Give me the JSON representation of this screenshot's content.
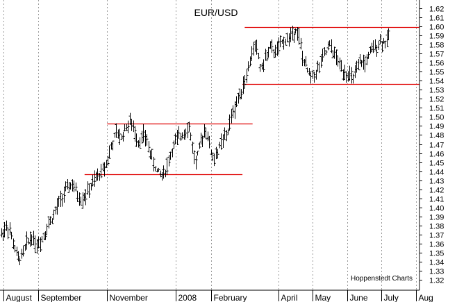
{
  "chart_data": {
    "type": "ohlc",
    "title": "EUR/USD",
    "credit": "Hoppenstedt Charts",
    "xlabel": "",
    "ylabel": "",
    "ylim": [
      1.31,
      1.625
    ],
    "y_ticks": [
      "1.62",
      "1.61",
      "1.60",
      "1.59",
      "1.58",
      "1.57",
      "1.56",
      "1.55",
      "1.54",
      "1.53",
      "1.52",
      "1.51",
      "1.50",
      "1.49",
      "1.48",
      "1.47",
      "1.46",
      "1.45",
      "1.44",
      "1.43",
      "1.42",
      "1.41",
      "1.40",
      "1.39",
      "1.38",
      "1.37",
      "1.36",
      "1.35",
      "1.34",
      "1.33",
      "1.32"
    ],
    "x_ticks": [
      {
        "label": "August",
        "day": 0
      },
      {
        "label": "September",
        "day": 31
      },
      {
        "label": "November",
        "day": 92
      },
      {
        "label": "2008",
        "day": 153
      },
      {
        "label": "February",
        "day": 184
      },
      {
        "label": "April",
        "day": 244
      },
      {
        "label": "May",
        "day": 274
      },
      {
        "label": "June",
        "day": 305
      },
      {
        "label": "July",
        "day": 335
      },
      {
        "label": "Aug",
        "day": 366
      }
    ],
    "x_range_days": [
      -3,
      369
    ],
    "grid": "vertical-dashed",
    "price_path": [
      [
        -2,
        1.37
      ],
      [
        3,
        1.38
      ],
      [
        6,
        1.372
      ],
      [
        9,
        1.358
      ],
      [
        13,
        1.342
      ],
      [
        17,
        1.348
      ],
      [
        21,
        1.362
      ],
      [
        25,
        1.368
      ],
      [
        30,
        1.358
      ],
      [
        35,
        1.368
      ],
      [
        40,
        1.382
      ],
      [
        45,
        1.392
      ],
      [
        50,
        1.408
      ],
      [
        55,
        1.418
      ],
      [
        60,
        1.426
      ],
      [
        64,
        1.418
      ],
      [
        68,
        1.408
      ],
      [
        73,
        1.414
      ],
      [
        78,
        1.424
      ],
      [
        83,
        1.434
      ],
      [
        88,
        1.442
      ],
      [
        92,
        1.452
      ],
      [
        96,
        1.468
      ],
      [
        100,
        1.482
      ],
      [
        104,
        1.476
      ],
      [
        108,
        1.488
      ],
      [
        112,
        1.494
      ],
      [
        116,
        1.484
      ],
      [
        120,
        1.472
      ],
      [
        124,
        1.48
      ],
      [
        128,
        1.47
      ],
      [
        132,
        1.452
      ],
      [
        136,
        1.44
      ],
      [
        140,
        1.436
      ],
      [
        144,
        1.442
      ],
      [
        148,
        1.458
      ],
      [
        152,
        1.472
      ],
      [
        156,
        1.478
      ],
      [
        160,
        1.484
      ],
      [
        164,
        1.49
      ],
      [
        167,
        1.472
      ],
      [
        170,
        1.448
      ],
      [
        173,
        1.462
      ],
      [
        176,
        1.476
      ],
      [
        179,
        1.49
      ],
      [
        182,
        1.472
      ],
      [
        186,
        1.452
      ],
      [
        190,
        1.462
      ],
      [
        194,
        1.474
      ],
      [
        198,
        1.48
      ],
      [
        202,
        1.5
      ],
      [
        206,
        1.514
      ],
      [
        210,
        1.528
      ],
      [
        214,
        1.54
      ],
      [
        218,
        1.558
      ],
      [
        222,
        1.58
      ],
      [
        225,
        1.574
      ],
      [
        228,
        1.552
      ],
      [
        232,
        1.564
      ],
      [
        236,
        1.576
      ],
      [
        240,
        1.572
      ],
      [
        244,
        1.576
      ],
      [
        248,
        1.584
      ],
      [
        252,
        1.586
      ],
      [
        256,
        1.592
      ],
      [
        259,
        1.598
      ],
      [
        262,
        1.588
      ],
      [
        265,
        1.566
      ],
      [
        269,
        1.552
      ],
      [
        273,
        1.544
      ],
      [
        277,
        1.55
      ],
      [
        281,
        1.558
      ],
      [
        285,
        1.57
      ],
      [
        289,
        1.578
      ],
      [
        293,
        1.57
      ],
      [
        297,
        1.56
      ],
      [
        301,
        1.552
      ],
      [
        305,
        1.548
      ],
      [
        309,
        1.542
      ],
      [
        313,
        1.55
      ],
      [
        317,
        1.562
      ],
      [
        320,
        1.558
      ],
      [
        323,
        1.566
      ],
      [
        327,
        1.574
      ],
      [
        331,
        1.58
      ],
      [
        335,
        1.584
      ],
      [
        339,
        1.582
      ],
      [
        342,
        1.59
      ]
    ],
    "horizontal_lines": [
      {
        "level": 1.599,
        "from_day": 214,
        "to_day": 369
      },
      {
        "level": 1.536,
        "from_day": 212,
        "to_day": 369
      },
      {
        "level": 1.493,
        "from_day": 92,
        "to_day": 221
      },
      {
        "level": 1.437,
        "from_day": 72,
        "to_day": 212
      }
    ],
    "colors": {
      "bars": "#000000",
      "resistance_support": "#e00000",
      "grid": "#9a9a9a",
      "axis": "#000000"
    }
  }
}
